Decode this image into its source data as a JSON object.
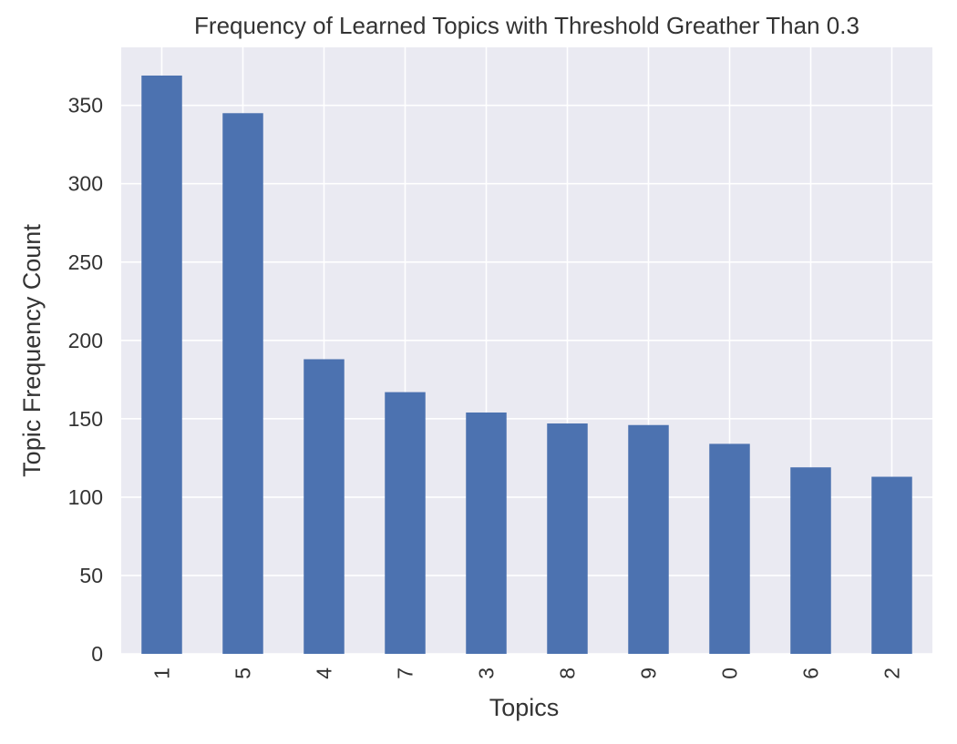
{
  "chart_data": {
    "type": "bar",
    "title": "Frequency of Learned Topics with Threshold Greather Than 0.3",
    "xlabel": "Topics",
    "ylabel": "Topic Frequency Count",
    "categories": [
      "1",
      "5",
      "4",
      "7",
      "3",
      "8",
      "9",
      "0",
      "6",
      "2"
    ],
    "values": [
      369,
      345,
      188,
      167,
      154,
      147,
      146,
      134,
      119,
      113
    ],
    "ylim": [
      0,
      387
    ],
    "yticks": [
      0,
      50,
      100,
      150,
      200,
      250,
      300,
      350
    ],
    "grid": true,
    "x_tick_rotation": "vertical",
    "colors": {
      "bar": "#4c72b0",
      "plot_background": "#eaeaf2",
      "grid": "#ffffff",
      "text": "#333333"
    }
  }
}
